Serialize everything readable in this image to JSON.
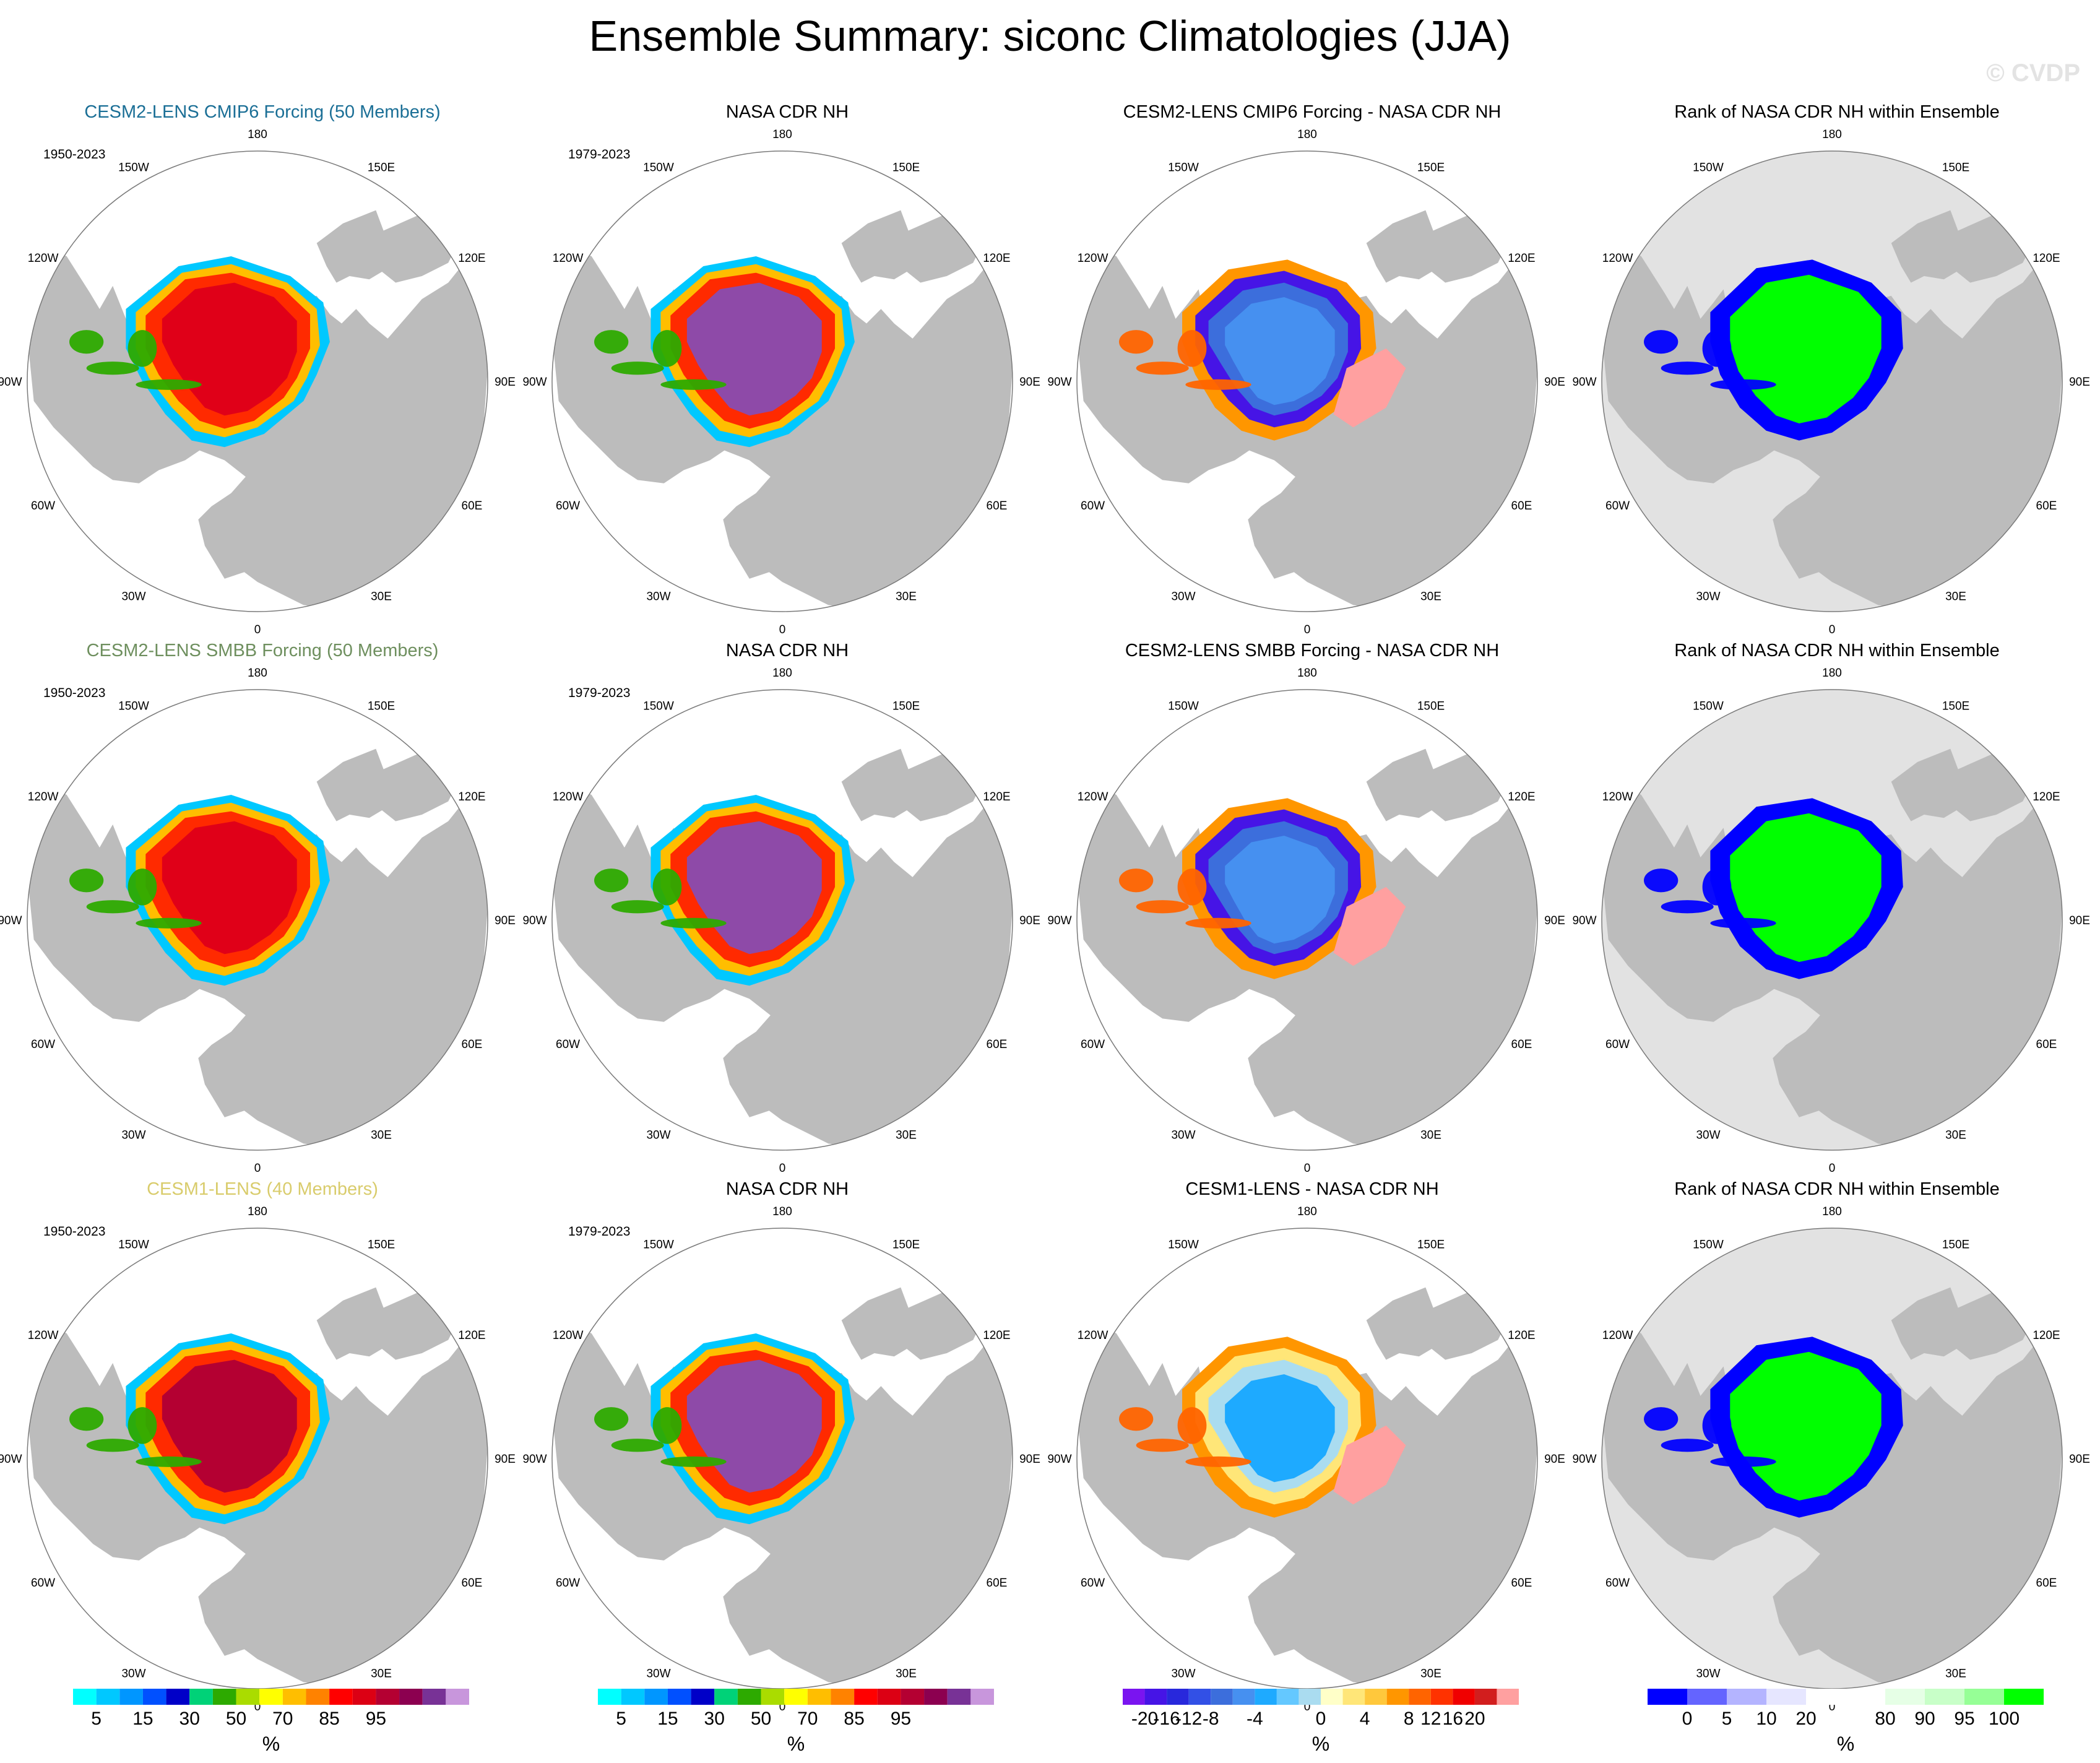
{
  "title": "Ensemble Summary: siconc Climatologies (JJA)",
  "watermark": "© CVDP",
  "lon_labels": [
    "180",
    "150E",
    "120E",
    "90E",
    "60E",
    "30E",
    "0",
    "30W",
    "60W",
    "90W",
    "120W",
    "150W"
  ],
  "colors": {
    "land": "#bcbcbc",
    "ocean": "#ffffff",
    "rank_background": "#e2e2e2",
    "rows": [
      "#1b6f96",
      "#6e8f5e",
      "#d9cc6c"
    ]
  },
  "rows": [
    {
      "ensemble_title": "CESM2-LENS CMIP6 Forcing (50 Members)",
      "ensemble_period": "1950-2023",
      "obs_title": "NASA CDR NH",
      "obs_period": "1979-2023",
      "diff_title": "CESM2-LENS CMIP6 Forcing - NASA CDR NH",
      "rank_title": "Rank of NASA CDR NH within Ensemble"
    },
    {
      "ensemble_title": "CESM2-LENS SMBB Forcing (50 Members)",
      "ensemble_period": "1950-2023",
      "obs_title": "NASA CDR NH",
      "obs_period": "1979-2023",
      "diff_title": "CESM2-LENS SMBB Forcing - NASA CDR NH",
      "rank_title": "Rank of NASA CDR NH within Ensemble"
    },
    {
      "ensemble_title": "CESM1-LENS (40 Members)",
      "ensemble_period": "1950-2023",
      "obs_title": "NASA CDR NH",
      "obs_period": "1979-2023",
      "diff_title": "CESM1-LENS - NASA CDR NH",
      "rank_title": "Rank of NASA CDR NH within Ensemble"
    }
  ],
  "colorbars": [
    {
      "unit": "%",
      "colors": [
        "#00ffff",
        "#00c8ff",
        "#0096ff",
        "#0050ff",
        "#0000c8",
        "#00d278",
        "#2daa00",
        "#aadc00",
        "#ffff00",
        "#ffbe00",
        "#ff8200",
        "#ff0000",
        "#dc0014",
        "#b40032",
        "#8c0050",
        "#783296",
        "#c896dc"
      ],
      "labels": [
        {
          "after": 1,
          "text": "5"
        },
        {
          "after": 3,
          "text": "15"
        },
        {
          "after": 5,
          "text": "30"
        },
        {
          "after": 7,
          "text": "50"
        },
        {
          "after": 9,
          "text": "70"
        },
        {
          "after": 11,
          "text": "85"
        },
        {
          "after": 13,
          "text": "95"
        }
      ]
    },
    {
      "unit": "%",
      "colors": [
        "#00ffff",
        "#00c8ff",
        "#0096ff",
        "#0050ff",
        "#0000c8",
        "#00d278",
        "#2daa00",
        "#aadc00",
        "#ffff00",
        "#ffbe00",
        "#ff8200",
        "#ff0000",
        "#dc0014",
        "#b40032",
        "#8c0050",
        "#783296",
        "#c896dc"
      ],
      "labels": [
        {
          "after": 1,
          "text": "5"
        },
        {
          "after": 3,
          "text": "15"
        },
        {
          "after": 5,
          "text": "30"
        },
        {
          "after": 7,
          "text": "50"
        },
        {
          "after": 9,
          "text": "70"
        },
        {
          "after": 11,
          "text": "85"
        },
        {
          "after": 13,
          "text": "95"
        }
      ]
    },
    {
      "unit": "%",
      "colors": [
        "#7a14f0",
        "#4614e6",
        "#2828dc",
        "#3250e6",
        "#3c6edc",
        "#4690f0",
        "#1eaaff",
        "#64c8ff",
        "#aadcf0",
        "#ffffc8",
        "#ffe678",
        "#ffc83c",
        "#ff9600",
        "#ff6400",
        "#ff3200",
        "#f00000",
        "#d21e1e",
        "#ffa0a0"
      ],
      "labels": [
        {
          "after": 1,
          "text": "-20"
        },
        {
          "after": 2,
          "text": "-16"
        },
        {
          "after": 3,
          "text": "-12"
        },
        {
          "after": 4,
          "text": "-8"
        },
        {
          "after": 6,
          "text": "-4"
        },
        {
          "after": 9,
          "text": "0"
        },
        {
          "after": 11,
          "text": "4"
        },
        {
          "after": 13,
          "text": "8"
        },
        {
          "after": 14,
          "text": "12"
        },
        {
          "after": 15,
          "text": "16"
        },
        {
          "after": 16,
          "text": "20"
        }
      ]
    },
    {
      "unit": "%",
      "colors": [
        "#0000ff",
        "#6464ff",
        "#b4b4ff",
        "#e6e6ff",
        "#ffffff",
        "#ffffff",
        "#e6ffe6",
        "#c8ffc8",
        "#96ff96",
        "#00ff00"
      ],
      "labels": [
        {
          "after": 1,
          "text": "0"
        },
        {
          "after": 2,
          "text": "5"
        },
        {
          "after": 3,
          "text": "10"
        },
        {
          "after": 4,
          "text": "20"
        },
        {
          "after": 6,
          "text": "80"
        },
        {
          "after": 7,
          "text": "90"
        },
        {
          "after": 8,
          "text": "95"
        },
        {
          "after": 9,
          "text": "100"
        }
      ]
    }
  ]
}
